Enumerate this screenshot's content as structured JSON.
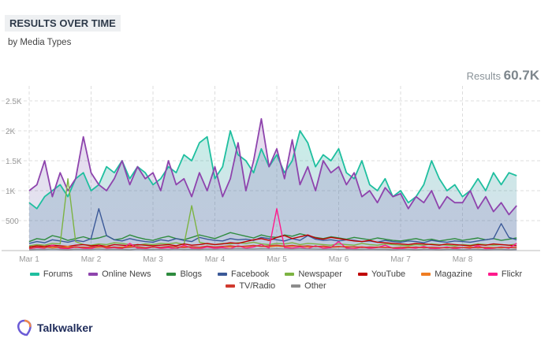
{
  "header": {
    "title": "RESULTS OVER TIME",
    "subtitle": "by Media Types",
    "results_label": "Results",
    "results_value": "60.7K"
  },
  "brand": {
    "name": "Talkwalker"
  },
  "chart_data": {
    "type": "line",
    "x_ticks": [
      "Mar 1",
      "Mar 2",
      "Mar 3",
      "Mar 4",
      "Mar 5",
      "Mar 6",
      "Mar 7",
      "Mar 8"
    ],
    "x_range": [
      "Mar 1",
      "Mar 9"
    ],
    "x_step_hours": 3,
    "y_ticks": [
      "500",
      "1K",
      "1.5K",
      "2K",
      "2.5K"
    ],
    "y_tick_values": [
      500,
      1000,
      1500,
      2000,
      2500
    ],
    "ylim": [
      0,
      2500
    ],
    "grid": true,
    "legend": "bottom",
    "series": [
      {
        "name": "Forums",
        "color": "#1fbf9f",
        "fill": true,
        "values": [
          800,
          700,
          900,
          1000,
          1100,
          900,
          1200,
          1300,
          1000,
          1100,
          1400,
          1300,
          1500,
          1200,
          1400,
          1300,
          1100,
          1200,
          1400,
          1300,
          1600,
          1500,
          1800,
          1900,
          1200,
          1400,
          2000,
          1600,
          1500,
          1300,
          1700,
          1400,
          1600,
          1300,
          1500,
          2000,
          1800,
          1400,
          1600,
          1500,
          1700,
          1300,
          1200,
          1500,
          1100,
          1000,
          1200,
          900,
          1000,
          800,
          900,
          1100,
          1500,
          1200,
          1000,
          1100,
          900,
          1000,
          1200,
          1000,
          1300,
          1100,
          1300,
          1250
        ]
      },
      {
        "name": "Online News",
        "color": "#8e44ad",
        "fill": true,
        "values": [
          1000,
          1100,
          1500,
          900,
          1300,
          1000,
          1200,
          1900,
          1300,
          1100,
          1000,
          1200,
          1500,
          1100,
          1400,
          1200,
          1300,
          1000,
          1500,
          1100,
          1200,
          900,
          1300,
          1000,
          1400,
          900,
          1200,
          1800,
          1000,
          1500,
          2200,
          1400,
          1700,
          1200,
          1850,
          1100,
          1400,
          1000,
          1500,
          1300,
          1400,
          1100,
          1300,
          900,
          1000,
          800,
          1050,
          900,
          950,
          700,
          900,
          800,
          1000,
          700,
          900,
          800,
          800,
          1000,
          700,
          900,
          650,
          800,
          600,
          750
        ]
      },
      {
        "name": "Blogs",
        "color": "#2e8b3e",
        "values": [
          150,
          200,
          180,
          250,
          220,
          170,
          200,
          230,
          190,
          210,
          250,
          180,
          200,
          260,
          220,
          190,
          170,
          210,
          240,
          200,
          180,
          220,
          260,
          230,
          200,
          250,
          300,
          270,
          240,
          210,
          260,
          230,
          220,
          260,
          240,
          280,
          250,
          220,
          200,
          230,
          210,
          190,
          220,
          200,
          180,
          210,
          190,
          170,
          160,
          180,
          200,
          170,
          190,
          160,
          180,
          200,
          170,
          190,
          210,
          180,
          200,
          170,
          190,
          210
        ]
      },
      {
        "name": "Facebook",
        "color": "#3b5998",
        "values": [
          120,
          150,
          130,
          180,
          160,
          140,
          170,
          150,
          200,
          700,
          250,
          180,
          160,
          200,
          170,
          150,
          140,
          180,
          160,
          200,
          170,
          150,
          220,
          190,
          170,
          160,
          200,
          180,
          190,
          170,
          220,
          200,
          180,
          160,
          200,
          170,
          250,
          190,
          170,
          180,
          160,
          180,
          170,
          150,
          160,
          140,
          170,
          150,
          140,
          160,
          150,
          130,
          170,
          150,
          140,
          160,
          150,
          140,
          160,
          180,
          200,
          450,
          220,
          180
        ]
      },
      {
        "name": "Newspaper",
        "color": "#7cb342",
        "values": [
          80,
          100,
          90,
          120,
          110,
          1200,
          150,
          100,
          90,
          110,
          100,
          130,
          120,
          100,
          90,
          110,
          100,
          120,
          110,
          130,
          100,
          750,
          140,
          110,
          100,
          120,
          110,
          130,
          120,
          140,
          110,
          100,
          120,
          110,
          130,
          100,
          120,
          110,
          100,
          90,
          110,
          100,
          90,
          120,
          100,
          90,
          110,
          100,
          90,
          80,
          100,
          90,
          110,
          100,
          90,
          80,
          100,
          90,
          110,
          100,
          90,
          100,
          90,
          110
        ]
      },
      {
        "name": "YouTube",
        "color": "#c00000",
        "values": [
          60,
          80,
          70,
          90,
          80,
          70,
          90,
          100,
          80,
          90,
          70,
          100,
          90,
          80,
          100,
          90,
          80,
          90,
          100,
          80,
          110,
          90,
          100,
          120,
          100,
          110,
          130,
          120,
          150,
          180,
          200,
          170,
          220,
          250,
          200,
          230,
          260,
          210,
          190,
          220,
          200,
          180,
          160,
          150,
          170,
          140,
          130,
          120,
          110,
          100,
          120,
          110,
          100,
          90,
          110,
          100,
          90,
          80,
          100,
          90,
          110,
          100,
          90,
          80
        ]
      },
      {
        "name": "Magazine",
        "color": "#ef7d22",
        "values": [
          40,
          50,
          60,
          45,
          55,
          70,
          50,
          60,
          45,
          55,
          65,
          50,
          60,
          70,
          55,
          45,
          60,
          50,
          65,
          55,
          70,
          60,
          50,
          65,
          55,
          70,
          60,
          75,
          65,
          80,
          70,
          60,
          75,
          65,
          70,
          80,
          60,
          70,
          65,
          55,
          60,
          70,
          55,
          65,
          50,
          60,
          55,
          45,
          50,
          60,
          45,
          55,
          50,
          40,
          55,
          45,
          50,
          60,
          45,
          55,
          50,
          45,
          55,
          50
        ]
      },
      {
        "name": "Flickr",
        "color": "#ff1a8c",
        "values": [
          30,
          50,
          40,
          90,
          40,
          30,
          60,
          40,
          30,
          80,
          40,
          50,
          30,
          120,
          40,
          30,
          60,
          40,
          50,
          30,
          90,
          40,
          30,
          60,
          40,
          50,
          30,
          80,
          40,
          60,
          100,
          40,
          700,
          50,
          40,
          60,
          30,
          80,
          40,
          50,
          150,
          40,
          30,
          60,
          40,
          50,
          90,
          40,
          30,
          50,
          40,
          70,
          30,
          40,
          60,
          30,
          50,
          40,
          80,
          30,
          40,
          60,
          40,
          120
        ]
      },
      {
        "name": "TV/Radio",
        "color": "#d03a2e",
        "values": [
          40,
          60,
          50,
          70,
          55,
          45,
          65,
          50,
          60,
          70,
          50,
          60,
          45,
          55,
          65,
          50,
          60,
          55,
          70,
          60,
          50,
          65,
          55,
          75,
          60,
          70,
          80,
          65,
          75,
          85,
          70,
          80,
          90,
          75,
          85,
          70,
          80,
          65,
          75,
          60,
          70,
          55,
          65,
          50,
          60,
          55,
          50,
          45,
          55,
          50,
          60,
          45,
          55,
          50,
          45,
          55,
          50,
          45,
          55,
          50,
          45,
          55,
          50,
          45
        ]
      },
      {
        "name": "Other",
        "color": "#8c8c8c",
        "values": [
          15,
          20,
          18,
          25,
          20,
          15,
          22,
          18,
          20,
          25,
          18,
          22,
          20,
          15,
          25,
          20,
          18,
          22,
          20,
          25,
          18,
          22,
          20,
          25,
          22,
          28,
          25,
          30,
          28,
          25,
          30,
          27,
          30,
          28,
          25,
          30,
          27,
          25,
          22,
          25,
          20,
          22,
          18,
          20,
          22,
          18,
          20,
          15,
          18,
          20,
          15,
          18,
          20,
          15,
          18,
          20,
          15,
          18,
          20,
          15,
          18,
          20,
          15,
          18
        ]
      }
    ]
  }
}
